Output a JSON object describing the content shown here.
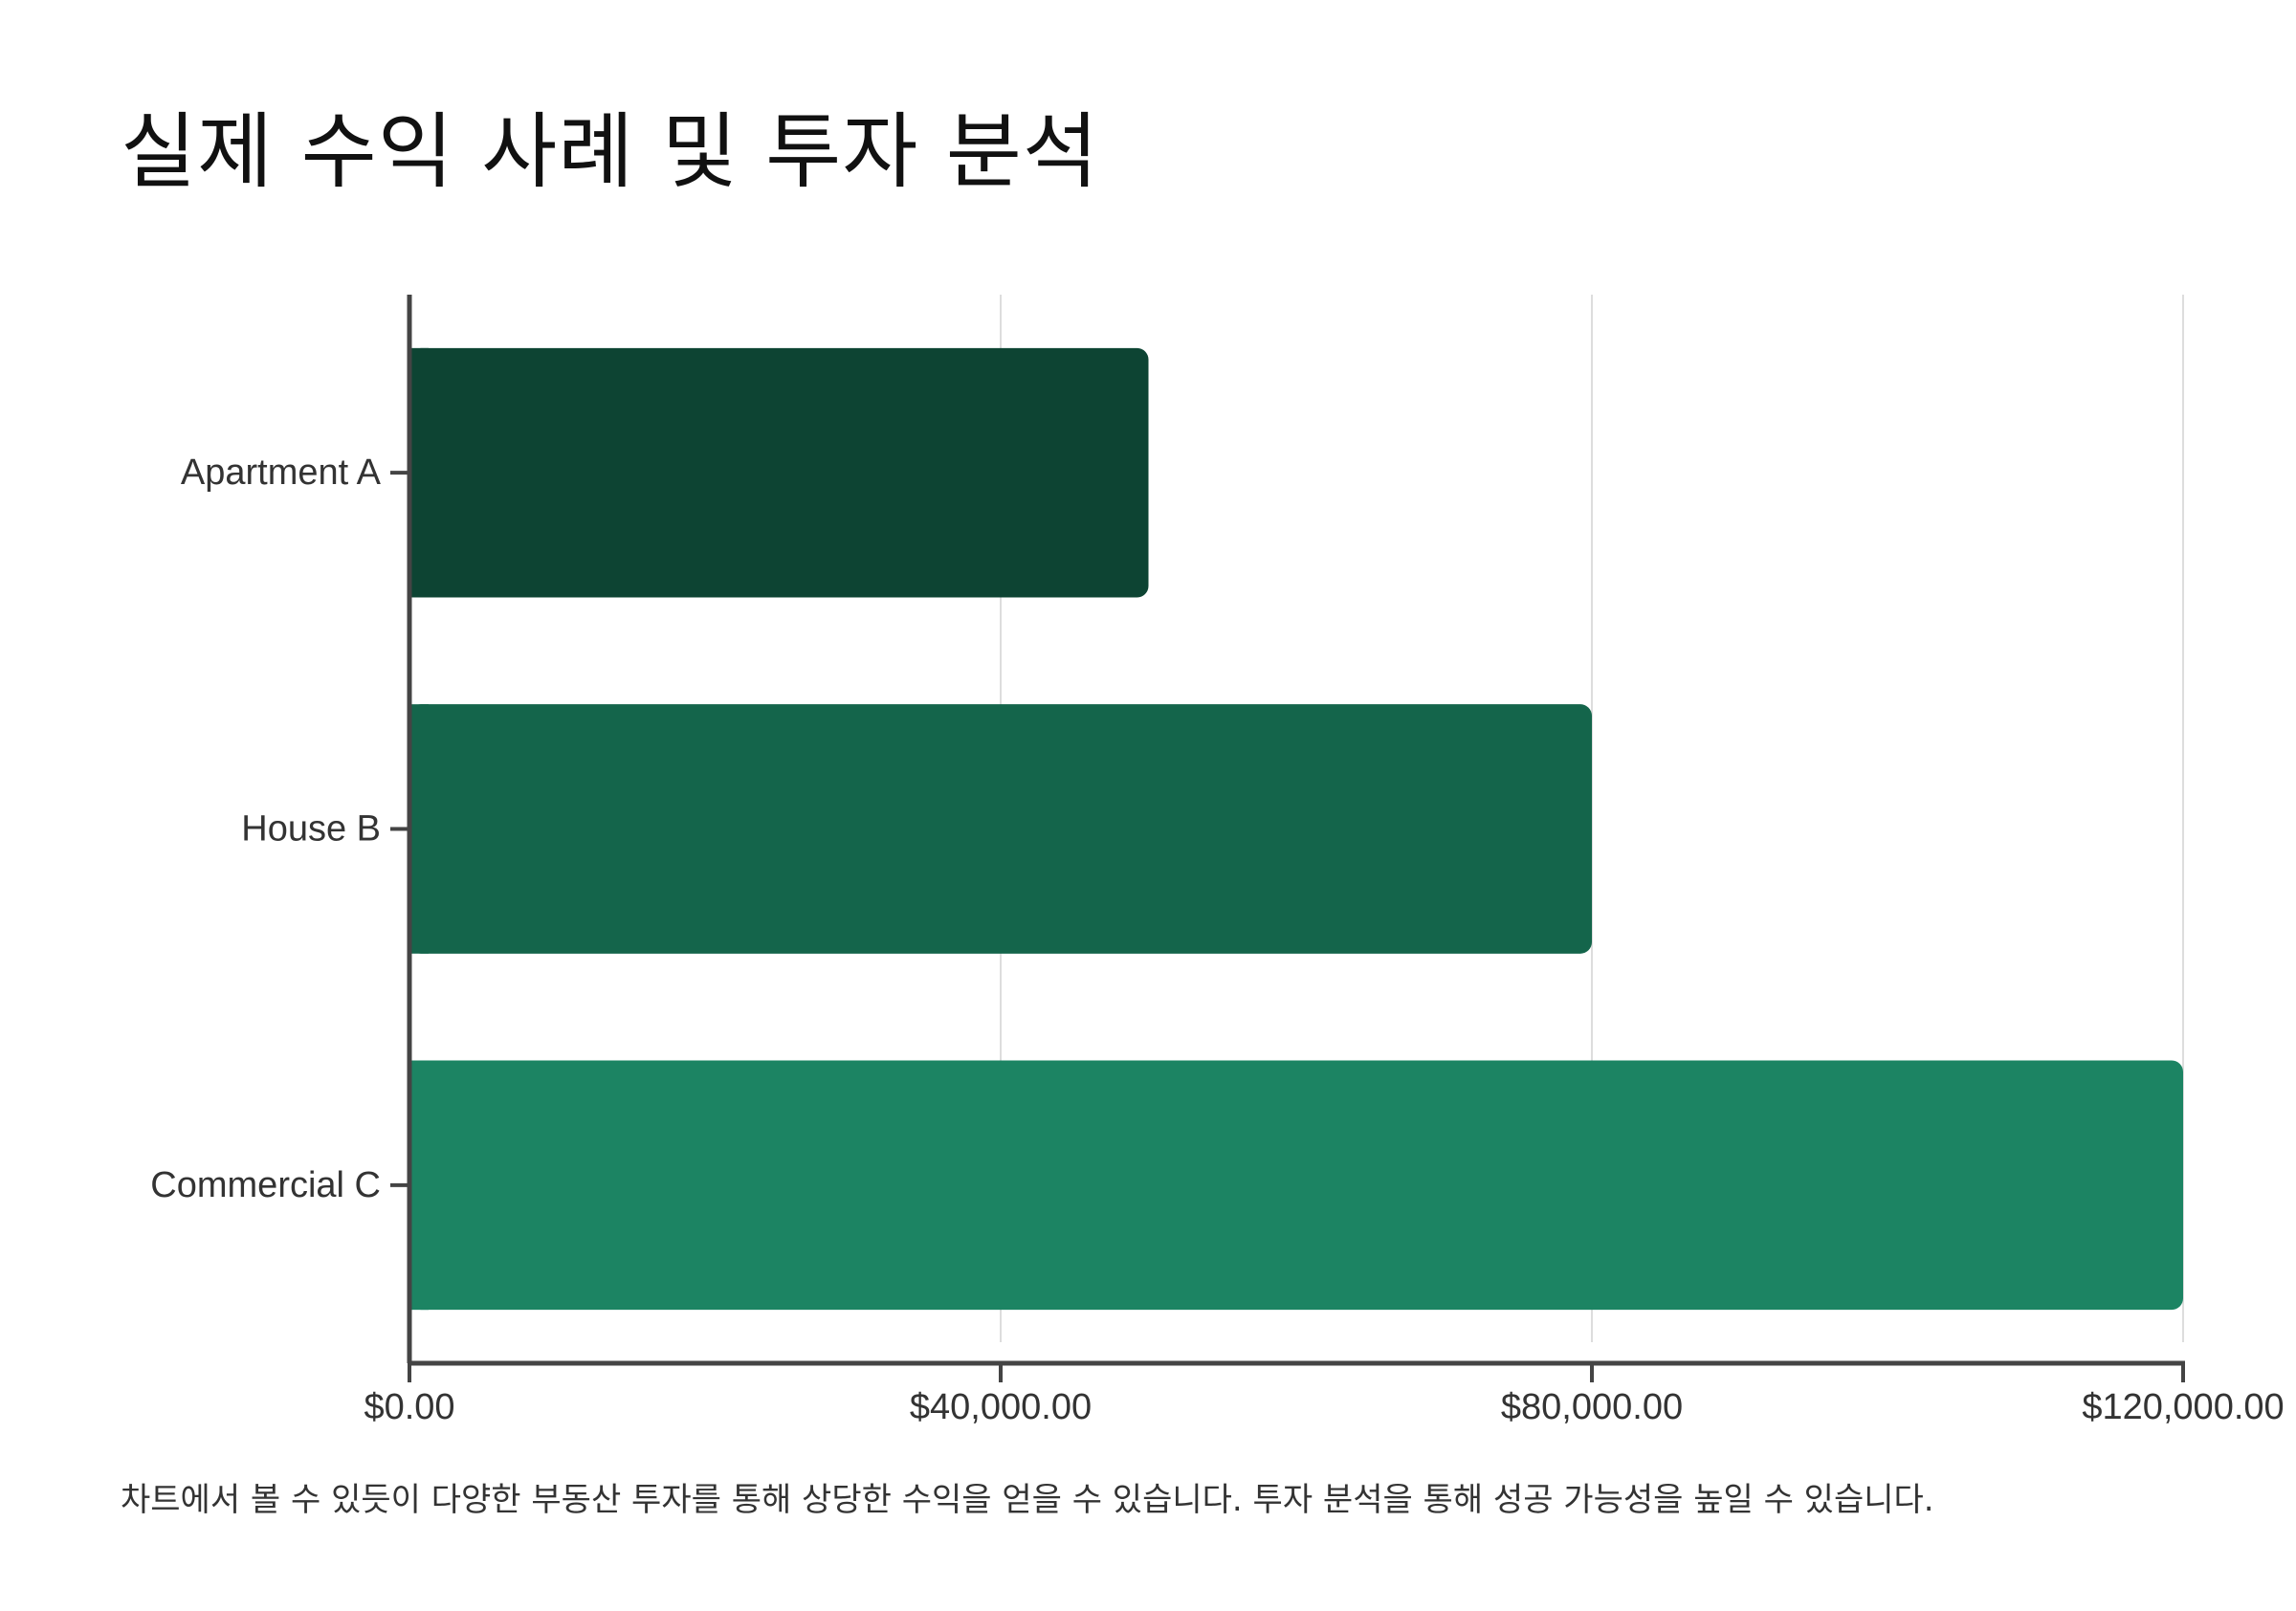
{
  "chart_data": {
    "type": "bar",
    "orientation": "horizontal",
    "title": "실제 수익 사례 및 투자 분석",
    "categories": [
      "Apartment A",
      "House B",
      "Commercial C"
    ],
    "values": [
      50000,
      80000,
      120000
    ],
    "colors": [
      "#0d4433",
      "#14654b",
      "#1c8463"
    ],
    "xlim": [
      0,
      120000
    ],
    "x_ticks": [
      {
        "value": 0,
        "label": "$0.00"
      },
      {
        "value": 40000,
        "label": "$40,000.00"
      },
      {
        "value": 80000,
        "label": "$80,000.00"
      },
      {
        "value": 120000,
        "label": "$120,000.00"
      }
    ],
    "xlabel": "",
    "ylabel": "",
    "grid": "vertical",
    "legend": "none",
    "caption": "차트에서 볼 수 있듯이 다양한 부동산 투자를 통해 상당한 수익을 얻을 수 있습니다. 투자 분석을 통해 성공 가능성을 높일 수 있습니다."
  }
}
